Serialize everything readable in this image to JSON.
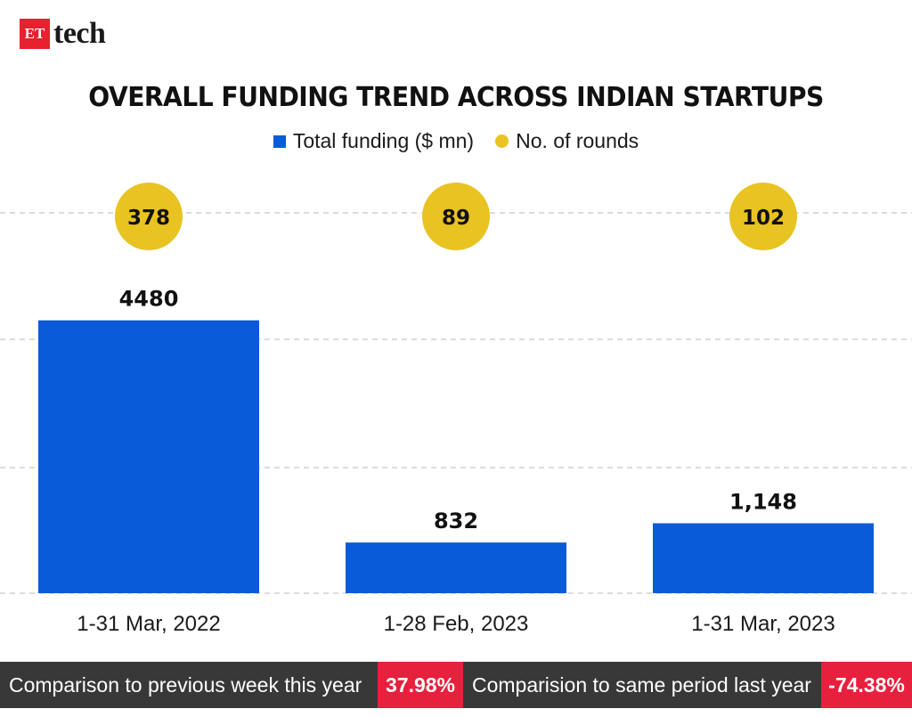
{
  "brand": {
    "badge": "ET",
    "name": "tech",
    "badge_color": "#e7212e"
  },
  "chart_data": {
    "type": "bar",
    "title": "OVERALL FUNDING TREND ACROSS INDIAN STARTUPS",
    "categories": [
      "1-31 Mar, 2022",
      "1-28 Feb, 2023",
      "1-31 Mar, 2023"
    ],
    "series": [
      {
        "name": "Total funding ($ mn)",
        "values": [
          4480,
          832,
          1148
        ],
        "labels": [
          "4480",
          "832",
          "1,148"
        ],
        "color": "#0a5bd9"
      },
      {
        "name": "No. of rounds",
        "values": [
          378,
          89,
          102
        ],
        "labels": [
          "378",
          "89",
          "102"
        ],
        "color": "#e8c322",
        "mark": "circle"
      }
    ],
    "legend": "top-center",
    "grid": "dashed-horizontal",
    "ylim": [
      0,
      6200
    ]
  },
  "footer": {
    "items": [
      {
        "label": "Comparison to previous week this year",
        "value": "37.98%"
      },
      {
        "label": "Comparision to same period last year",
        "value": "-74.38%"
      }
    ],
    "label_bg": "#383838",
    "value_bg": "#e7203d"
  }
}
